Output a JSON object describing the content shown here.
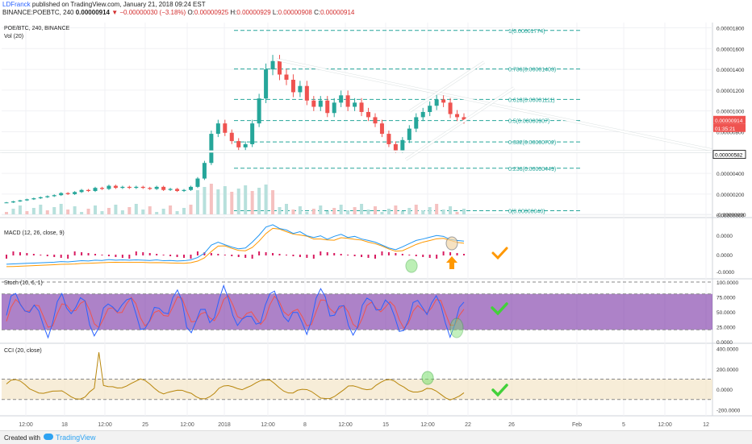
{
  "header": {
    "author": "LDFranck",
    "published": "published on TradingView.com, January 21, 2018 09:24 EST",
    "symbol": "BINANCE:POEBTC, 240",
    "last": "0.00000914",
    "change": "−0.00000030 (−3.18%)",
    "o_label": "O:",
    "o": "0.00000925",
    "h_label": "H:",
    "h": "0.00000929",
    "l_label": "L:",
    "l": "0.00000908",
    "c_label": "C:",
    "c": "0.00000914"
  },
  "footer": {
    "created_with": "Created with",
    "brand": "TradingView"
  },
  "chart_data": [
    {
      "type": "candlestick",
      "pane": "price",
      "title": "POE/BTC, 240, BINANCE",
      "indicator_label": "Vol (20)",
      "x_ticks": [
        "12:00",
        "18",
        "12:00",
        "25",
        "12:00",
        "2018",
        "12:00",
        "8",
        "12:00",
        "15",
        "12:00",
        "22",
        "26",
        "Feb",
        "5",
        "12:00",
        "12"
      ],
      "y_ticks": [
        "0.00001800",
        "0.00001600",
        "0.00001400",
        "0.00001200",
        "0.00001000",
        "0.00000800",
        "0.00000600",
        "0.00000400",
        "0.00000200",
        "0.00000000",
        "-0.00000000"
      ],
      "ylim": [
        -1e-07,
        1.85e-05
      ],
      "current_price_tag": "0.00000914",
      "countdown_tag": "01:35:21",
      "support_tag": "0.00000582",
      "fib_levels": [
        {
          "label": "1(0.00001774)",
          "value": 1.774e-05
        },
        {
          "label": "0.786(0.00001403)",
          "value": 1.403e-05
        },
        {
          "label": "0.618(0.00001111)",
          "value": 1.111e-05
        },
        {
          "label": "0.5(0.00000907)",
          "value": 9.07e-06
        },
        {
          "label": "0.382(0.00000702)",
          "value": 7.02e-06
        },
        {
          "label": "0.236(0.00000449)",
          "value": 4.49e-06
        },
        {
          "label": "0(0.00000040)",
          "value": 4e-07
        }
      ],
      "approx_close": [
        1.2e-06,
        1.3e-06,
        1.4e-06,
        1.5e-06,
        1.6e-06,
        1.7e-06,
        1.8e-06,
        1.9e-06,
        2.1e-06,
        2e-06,
        2.2e-06,
        2.4e-06,
        2.3e-06,
        2.6e-06,
        2.5e-06,
        2.8e-06,
        2.6e-06,
        2.7e-06,
        2.6e-06,
        2.7e-06,
        2.6e-06,
        2.5e-06,
        2.7e-06,
        2.4e-06,
        2.5e-06,
        2.3e-06,
        2.4e-06,
        2.7e-06,
        3.5e-06,
        5e-06,
        7.8e-06,
        8.8e-06,
        7.9e-06,
        7.1e-06,
        6.5e-06,
        6.8e-06,
        8.8e-06,
        1.12e-05,
        1.4e-05,
        1.48e-05,
        1.35e-05,
        1.3e-05,
        1.18e-05,
        1.24e-05,
        1.1e-05,
        1.04e-05,
        1.1e-05,
        9.8e-06,
        1.08e-05,
        1.15e-05,
        1.04e-05,
        1.08e-05,
        9.9e-06,
        9.4e-06,
        8.8e-06,
        7.8e-06,
        6.8e-06,
        6.2e-06,
        7.2e-06,
        8.3e-06,
        9.4e-06,
        9.9e-06,
        1.05e-05,
        1.11e-05,
        1.08e-05,
        9.7e-06,
        9.4e-06,
        9.14e-06
      ]
    },
    {
      "type": "line",
      "pane": "macd",
      "title": "MACD (12, 26, close, 9)",
      "y_ticks": [
        "0.0000",
        "0.0000",
        "-0.0000"
      ],
      "markers": [
        "circle-bottom",
        "circle-top",
        "arrow-up",
        "check-orange"
      ]
    },
    {
      "type": "line",
      "pane": "stoch",
      "title": "Stoch (10, 6, 1)",
      "y_ticks": [
        "100.0000",
        "75.0000",
        "50.0000",
        "25.0000",
        "0.0000"
      ],
      "ylim": [
        0,
        100
      ],
      "band": [
        20,
        80
      ],
      "markers": [
        "circle-oversold",
        "check-green"
      ]
    },
    {
      "type": "line",
      "pane": "cci",
      "title": "CCI (20, close)",
      "y_ticks": [
        "400.0000",
        "200.0000",
        "0.0000",
        "-200.0000"
      ],
      "ylim": [
        -260,
        420
      ],
      "band": [
        -100,
        100
      ],
      "markers": [
        "circle-cross",
        "check-green"
      ]
    }
  ],
  "colors": {
    "up": "#26a69a",
    "down": "#ef5350",
    "fib": "#26a69a",
    "macd": "#2196f3",
    "signal": "#ff9800",
    "hist": "#d81b60",
    "stoch_k": "#2962ff",
    "stoch_d": "#ef5350",
    "stoch_band": "#6a1b9a",
    "cci": "#b8860b",
    "price_tag": "#ef5350",
    "accent_orange": "#ff9800",
    "accent_green": "#43d13a"
  }
}
